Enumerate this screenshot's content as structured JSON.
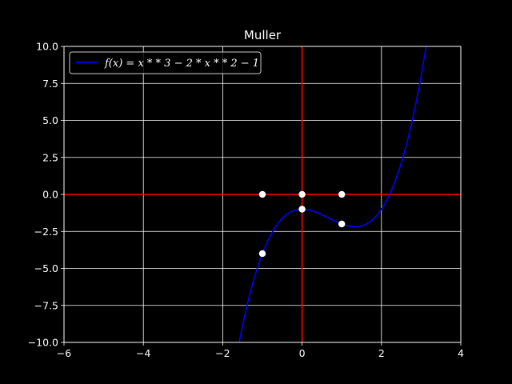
{
  "chart_data": {
    "type": "line",
    "title": "Muller",
    "xlabel": "",
    "ylabel": "",
    "xlim": [
      -6,
      4
    ],
    "ylim": [
      -10,
      10
    ],
    "xticks": [
      -6,
      -4,
      -2,
      0,
      2,
      4
    ],
    "xtick_labels": [
      "−6",
      "−4",
      "−2",
      "0",
      "2",
      "4"
    ],
    "yticks": [
      -10,
      -7.5,
      -5,
      -2.5,
      0,
      2.5,
      5,
      7.5,
      10
    ],
    "ytick_labels": [
      "−10.0",
      "−7.5",
      "−5.0",
      "−2.5",
      "0.0",
      "2.5",
      "5.0",
      "7.5",
      "10.0"
    ],
    "grid": true,
    "legend_position": "top-left",
    "series": [
      {
        "name": "f(x) = x * * 3 − 2 * x * * 2 − 1",
        "function": "x^3 - 2x^2 - 1",
        "x_range": [
          -1.6,
          3.15
        ],
        "color": "#0000ff"
      }
    ],
    "reference_lines": [
      {
        "orientation": "horizontal",
        "value": 0,
        "color": "#ff0000"
      },
      {
        "orientation": "vertical",
        "value": 0,
        "color": "#ff0000"
      }
    ],
    "points": [
      {
        "x": -1,
        "y": 0
      },
      {
        "x": 0,
        "y": 0
      },
      {
        "x": 1,
        "y": 0
      },
      {
        "x": 0,
        "y": -1
      },
      {
        "x": -1,
        "y": -4
      },
      {
        "x": 1,
        "y": -2
      }
    ],
    "colors": {
      "background": "#000000",
      "grid": "#ffffff",
      "text": "#ffffff",
      "points": "#ffffff"
    }
  }
}
